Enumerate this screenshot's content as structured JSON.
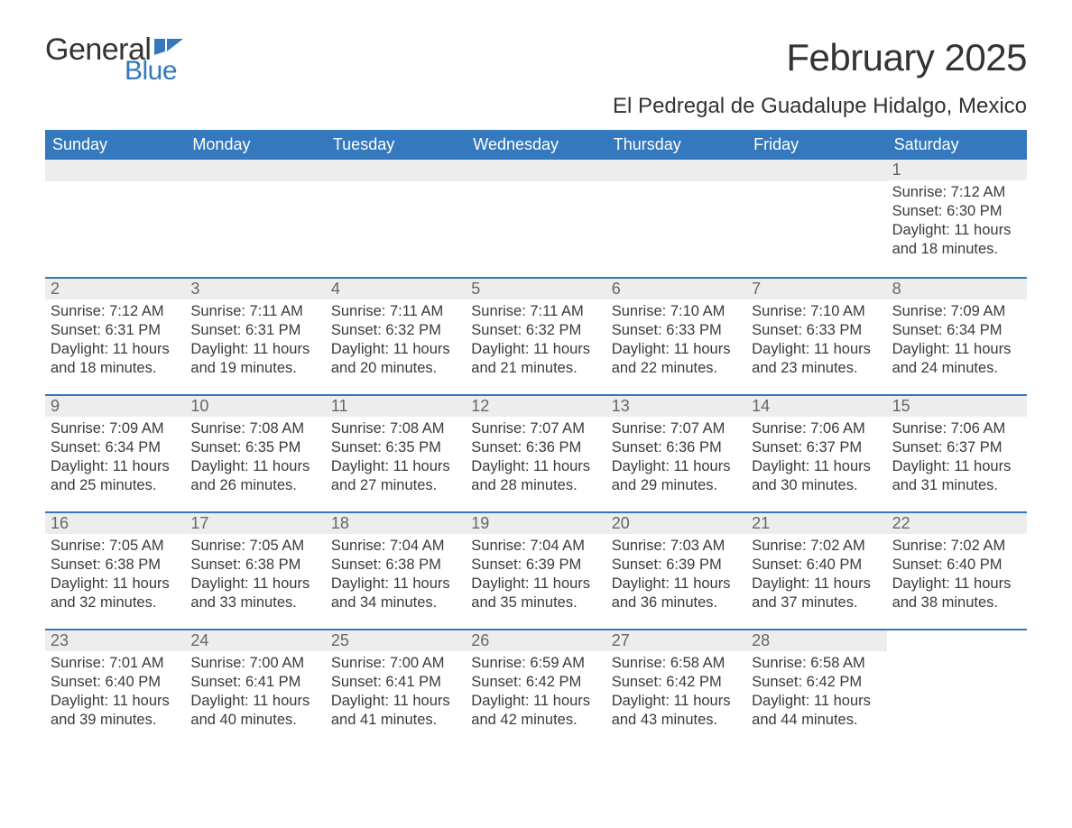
{
  "brand": {
    "word1": "General",
    "word2": "Blue",
    "flag_color": "#3478be"
  },
  "title": "February 2025",
  "location": "El Pedregal de Guadalupe Hidalgo, Mexico",
  "colors": {
    "header_bg": "#3478be",
    "stripe_bg": "#ededed",
    "text": "#333333",
    "border": "#3478be"
  },
  "day_names": [
    "Sunday",
    "Monday",
    "Tuesday",
    "Wednesday",
    "Thursday",
    "Friday",
    "Saturday"
  ],
  "weeks": [
    [
      null,
      null,
      null,
      null,
      null,
      null,
      {
        "date": "1",
        "sunrise": "Sunrise: 7:12 AM",
        "sunset": "Sunset: 6:30 PM",
        "daylight": "Daylight: 11 hours and 18 minutes."
      }
    ],
    [
      {
        "date": "2",
        "sunrise": "Sunrise: 7:12 AM",
        "sunset": "Sunset: 6:31 PM",
        "daylight": "Daylight: 11 hours and 18 minutes."
      },
      {
        "date": "3",
        "sunrise": "Sunrise: 7:11 AM",
        "sunset": "Sunset: 6:31 PM",
        "daylight": "Daylight: 11 hours and 19 minutes."
      },
      {
        "date": "4",
        "sunrise": "Sunrise: 7:11 AM",
        "sunset": "Sunset: 6:32 PM",
        "daylight": "Daylight: 11 hours and 20 minutes."
      },
      {
        "date": "5",
        "sunrise": "Sunrise: 7:11 AM",
        "sunset": "Sunset: 6:32 PM",
        "daylight": "Daylight: 11 hours and 21 minutes."
      },
      {
        "date": "6",
        "sunrise": "Sunrise: 7:10 AM",
        "sunset": "Sunset: 6:33 PM",
        "daylight": "Daylight: 11 hours and 22 minutes."
      },
      {
        "date": "7",
        "sunrise": "Sunrise: 7:10 AM",
        "sunset": "Sunset: 6:33 PM",
        "daylight": "Daylight: 11 hours and 23 minutes."
      },
      {
        "date": "8",
        "sunrise": "Sunrise: 7:09 AM",
        "sunset": "Sunset: 6:34 PM",
        "daylight": "Daylight: 11 hours and 24 minutes."
      }
    ],
    [
      {
        "date": "9",
        "sunrise": "Sunrise: 7:09 AM",
        "sunset": "Sunset: 6:34 PM",
        "daylight": "Daylight: 11 hours and 25 minutes."
      },
      {
        "date": "10",
        "sunrise": "Sunrise: 7:08 AM",
        "sunset": "Sunset: 6:35 PM",
        "daylight": "Daylight: 11 hours and 26 minutes."
      },
      {
        "date": "11",
        "sunrise": "Sunrise: 7:08 AM",
        "sunset": "Sunset: 6:35 PM",
        "daylight": "Daylight: 11 hours and 27 minutes."
      },
      {
        "date": "12",
        "sunrise": "Sunrise: 7:07 AM",
        "sunset": "Sunset: 6:36 PM",
        "daylight": "Daylight: 11 hours and 28 minutes."
      },
      {
        "date": "13",
        "sunrise": "Sunrise: 7:07 AM",
        "sunset": "Sunset: 6:36 PM",
        "daylight": "Daylight: 11 hours and 29 minutes."
      },
      {
        "date": "14",
        "sunrise": "Sunrise: 7:06 AM",
        "sunset": "Sunset: 6:37 PM",
        "daylight": "Daylight: 11 hours and 30 minutes."
      },
      {
        "date": "15",
        "sunrise": "Sunrise: 7:06 AM",
        "sunset": "Sunset: 6:37 PM",
        "daylight": "Daylight: 11 hours and 31 minutes."
      }
    ],
    [
      {
        "date": "16",
        "sunrise": "Sunrise: 7:05 AM",
        "sunset": "Sunset: 6:38 PM",
        "daylight": "Daylight: 11 hours and 32 minutes."
      },
      {
        "date": "17",
        "sunrise": "Sunrise: 7:05 AM",
        "sunset": "Sunset: 6:38 PM",
        "daylight": "Daylight: 11 hours and 33 minutes."
      },
      {
        "date": "18",
        "sunrise": "Sunrise: 7:04 AM",
        "sunset": "Sunset: 6:38 PM",
        "daylight": "Daylight: 11 hours and 34 minutes."
      },
      {
        "date": "19",
        "sunrise": "Sunrise: 7:04 AM",
        "sunset": "Sunset: 6:39 PM",
        "daylight": "Daylight: 11 hours and 35 minutes."
      },
      {
        "date": "20",
        "sunrise": "Sunrise: 7:03 AM",
        "sunset": "Sunset: 6:39 PM",
        "daylight": "Daylight: 11 hours and 36 minutes."
      },
      {
        "date": "21",
        "sunrise": "Sunrise: 7:02 AM",
        "sunset": "Sunset: 6:40 PM",
        "daylight": "Daylight: 11 hours and 37 minutes."
      },
      {
        "date": "22",
        "sunrise": "Sunrise: 7:02 AM",
        "sunset": "Sunset: 6:40 PM",
        "daylight": "Daylight: 11 hours and 38 minutes."
      }
    ],
    [
      {
        "date": "23",
        "sunrise": "Sunrise: 7:01 AM",
        "sunset": "Sunset: 6:40 PM",
        "daylight": "Daylight: 11 hours and 39 minutes."
      },
      {
        "date": "24",
        "sunrise": "Sunrise: 7:00 AM",
        "sunset": "Sunset: 6:41 PM",
        "daylight": "Daylight: 11 hours and 40 minutes."
      },
      {
        "date": "25",
        "sunrise": "Sunrise: 7:00 AM",
        "sunset": "Sunset: 6:41 PM",
        "daylight": "Daylight: 11 hours and 41 minutes."
      },
      {
        "date": "26",
        "sunrise": "Sunrise: 6:59 AM",
        "sunset": "Sunset: 6:42 PM",
        "daylight": "Daylight: 11 hours and 42 minutes."
      },
      {
        "date": "27",
        "sunrise": "Sunrise: 6:58 AM",
        "sunset": "Sunset: 6:42 PM",
        "daylight": "Daylight: 11 hours and 43 minutes."
      },
      {
        "date": "28",
        "sunrise": "Sunrise: 6:58 AM",
        "sunset": "Sunset: 6:42 PM",
        "daylight": "Daylight: 11 hours and 44 minutes."
      },
      null
    ]
  ]
}
